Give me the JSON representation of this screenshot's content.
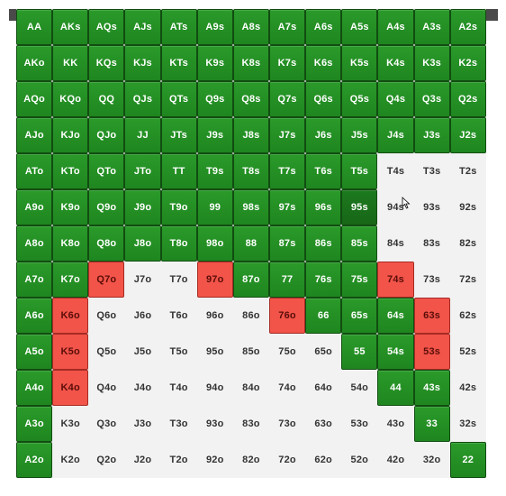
{
  "range": {
    "hands": [
      [
        "AA",
        "AKs",
        "AQs",
        "AJs",
        "ATs",
        "A9s",
        "A8s",
        "A7s",
        "A6s",
        "A5s",
        "A4s",
        "A3s",
        "A2s"
      ],
      [
        "AKo",
        "KK",
        "KQs",
        "KJs",
        "KTs",
        "K9s",
        "K8s",
        "K7s",
        "K6s",
        "K5s",
        "K4s",
        "K3s",
        "K2s"
      ],
      [
        "AQo",
        "KQo",
        "QQ",
        "QJs",
        "QTs",
        "Q9s",
        "Q8s",
        "Q7s",
        "Q6s",
        "Q5s",
        "Q4s",
        "Q3s",
        "Q2s"
      ],
      [
        "AJo",
        "KJo",
        "QJo",
        "JJ",
        "JTs",
        "J9s",
        "J8s",
        "J7s",
        "J6s",
        "J5s",
        "J4s",
        "J3s",
        "J2s"
      ],
      [
        "ATo",
        "KTo",
        "QTo",
        "JTo",
        "TT",
        "T9s",
        "T8s",
        "T7s",
        "T6s",
        "T5s",
        "T4s",
        "T3s",
        "T2s"
      ],
      [
        "A9o",
        "K9o",
        "Q9o",
        "J9o",
        "T9o",
        "99",
        "98s",
        "97s",
        "96s",
        "95s",
        "94s",
        "93s",
        "92s"
      ],
      [
        "A8o",
        "K8o",
        "Q8o",
        "J8o",
        "T8o",
        "98o",
        "88",
        "87s",
        "86s",
        "85s",
        "84s",
        "83s",
        "82s"
      ],
      [
        "A7o",
        "K7o",
        "Q7o",
        "J7o",
        "T7o",
        "97o",
        "87o",
        "77",
        "76s",
        "75s",
        "74s",
        "73s",
        "72s"
      ],
      [
        "A6o",
        "K6o",
        "Q6o",
        "J6o",
        "T6o",
        "96o",
        "86o",
        "76o",
        "66",
        "65s",
        "64s",
        "63s",
        "62s"
      ],
      [
        "A5o",
        "K5o",
        "Q5o",
        "J5o",
        "T5o",
        "95o",
        "85o",
        "75o",
        "65o",
        "55",
        "54s",
        "53s",
        "52s"
      ],
      [
        "A4o",
        "K4o",
        "Q4o",
        "J4o",
        "T4o",
        "94o",
        "84o",
        "74o",
        "64o",
        "54o",
        "44",
        "43s",
        "42s"
      ],
      [
        "A3o",
        "K3o",
        "Q3o",
        "J3o",
        "T3o",
        "93o",
        "83o",
        "73o",
        "63o",
        "53o",
        "43o",
        "33",
        "32s"
      ],
      [
        "A2o",
        "K2o",
        "Q2o",
        "J2o",
        "T2o",
        "92o",
        "82o",
        "72o",
        "62o",
        "52o",
        "42o",
        "32o",
        "22"
      ]
    ],
    "actions": [
      [
        "raise",
        "raise",
        "raise",
        "raise",
        "raise",
        "raise",
        "raise",
        "raise",
        "raise",
        "raise",
        "raise",
        "raise",
        "raise"
      ],
      [
        "raise",
        "raise",
        "raise",
        "raise",
        "raise",
        "raise",
        "raise",
        "raise",
        "raise",
        "raise",
        "raise",
        "raise",
        "raise"
      ],
      [
        "raise",
        "raise",
        "raise",
        "raise",
        "raise",
        "raise",
        "raise",
        "raise",
        "raise",
        "raise",
        "raise",
        "raise",
        "raise"
      ],
      [
        "raise",
        "raise",
        "raise",
        "raise",
        "raise",
        "raise",
        "raise",
        "raise",
        "raise",
        "raise",
        "raise",
        "raise",
        "raise"
      ],
      [
        "raise",
        "raise",
        "raise",
        "raise",
        "raise",
        "raise",
        "raise",
        "raise",
        "raise",
        "raise",
        "fold",
        "fold",
        "fold"
      ],
      [
        "raise",
        "raise",
        "raise",
        "raise",
        "raise",
        "raise",
        "raise",
        "raise",
        "raise",
        "raise",
        "fold",
        "fold",
        "fold"
      ],
      [
        "raise",
        "raise",
        "raise",
        "raise",
        "raise",
        "raise",
        "raise",
        "raise",
        "raise",
        "raise",
        "fold",
        "fold",
        "fold"
      ],
      [
        "raise",
        "raise",
        "call",
        "fold",
        "fold",
        "call",
        "raise",
        "raise",
        "raise",
        "raise",
        "call",
        "fold",
        "fold"
      ],
      [
        "raise",
        "call",
        "fold",
        "fold",
        "fold",
        "fold",
        "fold",
        "call",
        "raise",
        "raise",
        "raise",
        "call",
        "fold"
      ],
      [
        "raise",
        "call",
        "fold",
        "fold",
        "fold",
        "fold",
        "fold",
        "fold",
        "fold",
        "raise",
        "raise",
        "call",
        "fold"
      ],
      [
        "raise",
        "call",
        "fold",
        "fold",
        "fold",
        "fold",
        "fold",
        "fold",
        "fold",
        "fold",
        "raise",
        "raise",
        "fold"
      ],
      [
        "raise",
        "fold",
        "fold",
        "fold",
        "fold",
        "fold",
        "fold",
        "fold",
        "fold",
        "fold",
        "fold",
        "raise",
        "fold"
      ],
      [
        "raise",
        "fold",
        "fold",
        "fold",
        "fold",
        "fold",
        "fold",
        "fold",
        "fold",
        "fold",
        "fold",
        "fold",
        "raise"
      ]
    ],
    "hovered_hand": "95s",
    "colors": {
      "raise": "#1f8a1f",
      "call": "#f2544a",
      "fold": "#f2f2f2"
    }
  }
}
